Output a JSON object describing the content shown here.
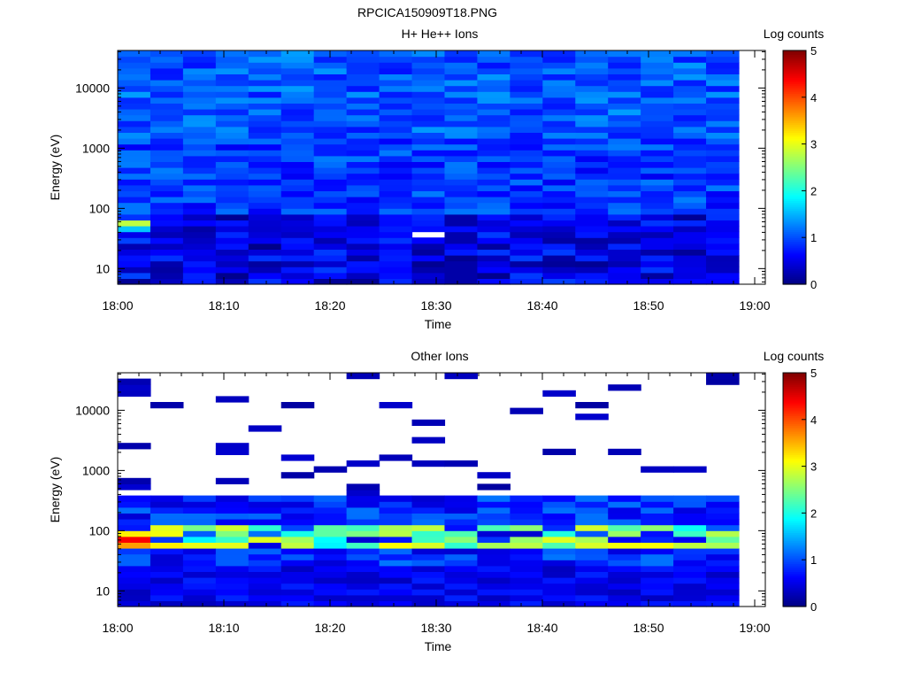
{
  "figure_title": "RPCICA150909T18.PNG",
  "chart_data": [
    {
      "type": "heatmap",
      "title": "H+ He++ Ions",
      "xlabel": "Time",
      "ylabel": "Energy (eV)",
      "x_ticks": [
        "18:00",
        "18:10",
        "18:20",
        "18:30",
        "18:40",
        "18:50",
        "19:00"
      ],
      "y_ticks": [
        "10",
        "100",
        "1000",
        "10000"
      ],
      "y_scale": "log",
      "ylim": [
        5.5,
        42000
      ],
      "xlim": [
        "18:00",
        "19:01"
      ],
      "colorbar": {
        "label": "Log counts",
        "ticks": [
          "0",
          "1",
          "2",
          "3",
          "4",
          "5"
        ],
        "range": [
          0,
          5
        ],
        "colormap": "jet"
      },
      "x": [
        "18:00",
        "18:03",
        "18:06",
        "18:10",
        "18:13",
        "18:16",
        "18:19",
        "18:22",
        "18:26",
        "18:29",
        "18:32",
        "18:35",
        "18:38",
        "18:42",
        "18:45",
        "18:48",
        "18:51",
        "18:54",
        "18:58"
      ],
      "description_level": "mostly 0.6-1.4 log counts; hotspot ~2.8 near 50 eV at 18:00; empty bin near 30 eV at 18:30"
    },
    {
      "type": "heatmap",
      "title": "Other Ions",
      "xlabel": "Time",
      "ylabel": "Energy (eV)",
      "x_ticks": [
        "18:00",
        "18:10",
        "18:20",
        "18:30",
        "18:40",
        "18:50",
        "19:00"
      ],
      "y_ticks": [
        "10",
        "100",
        "1000",
        "10000"
      ],
      "y_scale": "log",
      "ylim": [
        5.5,
        42000
      ],
      "xlim": [
        "18:00",
        "19:01"
      ],
      "colorbar": {
        "label": "Log counts",
        "ticks": [
          "0",
          "1",
          "2",
          "3",
          "4",
          "5"
        ],
        "range": [
          0,
          5
        ],
        "colormap": "jet"
      },
      "x": [
        "18:00",
        "18:03",
        "18:06",
        "18:10",
        "18:13",
        "18:16",
        "18:19",
        "18:22",
        "18:26",
        "18:29",
        "18:32",
        "18:35",
        "18:38",
        "18:42",
        "18:45",
        "18:48",
        "18:51",
        "18:54",
        "18:58"
      ],
      "description_level": "dense counts below ~200 eV, peak ~4.5 near 50 eV at 18:00; sparse low counts above 200 eV"
    }
  ]
}
